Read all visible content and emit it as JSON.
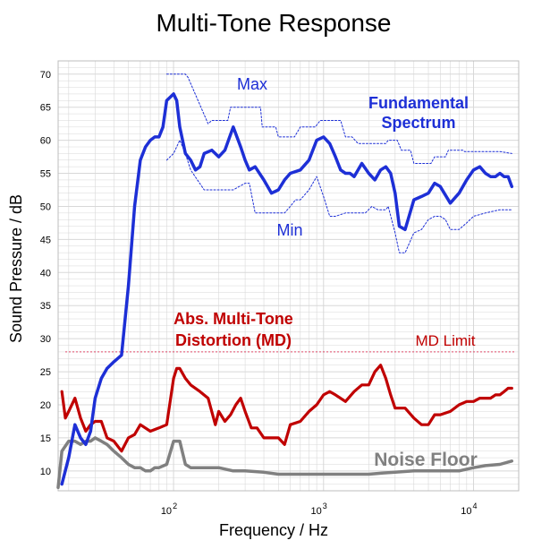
{
  "chart_data": {
    "type": "line",
    "title": "Multi-Tone Response",
    "xlabel": "Frequency / Hz",
    "ylabel": "Sound Pressure / dB",
    "x_scale": "log",
    "xlim": [
      17,
      20000
    ],
    "ylim": [
      7,
      72
    ],
    "grid": true,
    "y_ticks": [
      "10",
      "15",
      "20",
      "25",
      "30",
      "35",
      "40",
      "45",
      "50",
      "55",
      "60",
      "65",
      "70"
    ],
    "x_ticks": [
      {
        "base": "10",
        "exp": "2",
        "value": 100
      },
      {
        "base": "10",
        "exp": "3",
        "value": 1000
      },
      {
        "base": "10",
        "exp": "4",
        "value": 10000
      }
    ],
    "annotations": {
      "max": "Max",
      "min": "Min",
      "fundamental_1": "Fundamental",
      "fundamental_2": "Spectrum",
      "md_1": "Abs. Multi-Tone",
      "md_2": "Distortion (MD)",
      "md_limit": "MD Limit",
      "noise_floor": "Noise Floor"
    },
    "colors": {
      "fundamental": "#1d2fd6",
      "bounds": "#1d2fd6",
      "distortion": "#c00000",
      "md_limit": "#e04a6a",
      "noise": "#808080",
      "grid": "#d8d8d8"
    },
    "md_limit": 28,
    "series": [
      {
        "key": "fundamental",
        "x": [
          18,
          20,
          22,
          24,
          26,
          28,
          30,
          33,
          36,
          40,
          45,
          50,
          55,
          60,
          65,
          70,
          75,
          80,
          85,
          90,
          100,
          105,
          110,
          120,
          130,
          140,
          150,
          160,
          180,
          200,
          220,
          250,
          280,
          300,
          320,
          350,
          400,
          450,
          500,
          550,
          600,
          700,
          800,
          900,
          1000,
          1100,
          1200,
          1300,
          1400,
          1500,
          1600,
          1800,
          2000,
          2200,
          2400,
          2600,
          2800,
          3000,
          3200,
          3500,
          4000,
          4500,
          5000,
          5500,
          6000,
          7000,
          8000,
          9000,
          10000,
          11000,
          12000,
          13000,
          14000,
          15000,
          16000,
          17000,
          18000
        ],
        "values": [
          8,
          12,
          17,
          15,
          14,
          16,
          21,
          24,
          25.5,
          26.5,
          27.5,
          38,
          50,
          57,
          59,
          60,
          60.5,
          60.5,
          62,
          66,
          67,
          66,
          62,
          58,
          57,
          55.5,
          56,
          58,
          58.5,
          57.5,
          58.5,
          62,
          59,
          57,
          55.5,
          56,
          54,
          52,
          52.5,
          54,
          55,
          55.5,
          57,
          60,
          60.5,
          59.5,
          57.5,
          55.5,
          55,
          55,
          54.5,
          56.5,
          55,
          54,
          55.5,
          56,
          55,
          52,
          47,
          46.5,
          51,
          51.5,
          52,
          53.5,
          53,
          50.5,
          52,
          54,
          55.5,
          56,
          55,
          54.5,
          54.5,
          55,
          54.5,
          54.5,
          53
        ]
      },
      {
        "key": "max",
        "x": [
          90,
          120,
          125,
          170,
          180,
          230,
          240,
          380,
          390,
          480,
          500,
          640,
          700,
          880,
          950,
          1300,
          1400,
          1550,
          1700,
          2600,
          2700,
          3100,
          3300,
          3800,
          4000,
          5200,
          5500,
          6500,
          6800,
          8500,
          8700,
          15000,
          18000
        ],
        "values": [
          70,
          70,
          69.5,
          62.5,
          63,
          63,
          65,
          65,
          62,
          62,
          60.5,
          60.5,
          62,
          62,
          63,
          63,
          60.5,
          60.5,
          59.5,
          59.5,
          60,
          60,
          58.5,
          58.5,
          56.5,
          56.5,
          57.5,
          57.5,
          58.5,
          58.5,
          58.3,
          58.3,
          58
        ]
      },
      {
        "key": "min",
        "x": [
          90,
          100,
          110,
          120,
          130,
          160,
          180,
          220,
          250,
          300,
          320,
          350,
          500,
          550,
          600,
          650,
          700,
          800,
          900,
          1000,
          1100,
          1200,
          1400,
          1600,
          1900,
          2100,
          2300,
          2600,
          2700,
          3000,
          3200,
          3500,
          4000,
          4500,
          5000,
          5500,
          6000,
          6500,
          7000,
          8000,
          9000,
          10000,
          12000,
          15000,
          18000
        ],
        "values": [
          57,
          58,
          60,
          58,
          55.5,
          52.5,
          52.5,
          52.5,
          52.5,
          53.5,
          53.5,
          49,
          49,
          49,
          50,
          51,
          51,
          52.5,
          54.5,
          51.5,
          48.5,
          48.5,
          49,
          49,
          49,
          50,
          49.5,
          49.5,
          50,
          46,
          43,
          43,
          46,
          46.5,
          48,
          48.5,
          48.5,
          48,
          46.5,
          46.5,
          47.5,
          48.5,
          49,
          49.5,
          49.5
        ]
      },
      {
        "key": "distortion",
        "x": [
          18,
          19,
          20,
          22,
          24,
          26,
          28,
          30,
          33,
          36,
          40,
          45,
          50,
          55,
          60,
          70,
          80,
          90,
          100,
          105,
          110,
          120,
          130,
          150,
          170,
          190,
          200,
          220,
          240,
          260,
          280,
          300,
          330,
          360,
          400,
          450,
          500,
          550,
          600,
          700,
          800,
          900,
          1000,
          1100,
          1200,
          1400,
          1600,
          1800,
          2000,
          2200,
          2400,
          2600,
          2800,
          3000,
          3500,
          4000,
          4500,
          5000,
          5500,
          6000,
          7000,
          8000,
          9000,
          10000,
          11000,
          12000,
          13000,
          14000,
          15000,
          16000,
          17000,
          18000
        ],
        "values": [
          22,
          18,
          19,
          21,
          18,
          16,
          17,
          17.5,
          17.5,
          15,
          14.5,
          13,
          15,
          15.5,
          17,
          16,
          16.5,
          17,
          24,
          25.5,
          25.5,
          24,
          23,
          22,
          21,
          17,
          19,
          17.5,
          18.5,
          20,
          21,
          19,
          16.5,
          16.5,
          15,
          15,
          15,
          14,
          17,
          17.5,
          19,
          20,
          21.5,
          22,
          21.5,
          20.5,
          22,
          23,
          23,
          25,
          26,
          24,
          21.5,
          19.5,
          19.5,
          18,
          17,
          17,
          18.5,
          18.5,
          19,
          20,
          20.5,
          20.5,
          21,
          21,
          21,
          21.5,
          21.5,
          22,
          22.5,
          22.5
        ]
      },
      {
        "key": "noise",
        "x": [
          17,
          18,
          20,
          22,
          24,
          26,
          28,
          30,
          33,
          36,
          40,
          45,
          50,
          55,
          60,
          65,
          70,
          75,
          80,
          90,
          100,
          105,
          110,
          120,
          130,
          150,
          180,
          200,
          250,
          300,
          400,
          500,
          600,
          700,
          800,
          900,
          1000,
          1200,
          1500,
          2000,
          2500,
          3000,
          4000,
          5000,
          6000,
          8000,
          10000,
          12000,
          15000,
          18000
        ],
        "values": [
          7.5,
          13,
          14.5,
          14.5,
          14,
          14.5,
          14.5,
          15,
          14.5,
          14,
          13,
          12,
          11,
          10.5,
          10.5,
          10,
          10,
          10.5,
          10.5,
          11,
          14.5,
          14.5,
          14.5,
          11,
          10.5,
          10.5,
          10.5,
          10.5,
          10,
          10,
          9.8,
          9.5,
          9.5,
          9.5,
          9.5,
          9.5,
          9.5,
          9.5,
          9.5,
          9.5,
          9.7,
          9.8,
          10,
          10,
          10,
          10,
          10.5,
          10.8,
          11,
          11.5
        ]
      }
    ]
  }
}
